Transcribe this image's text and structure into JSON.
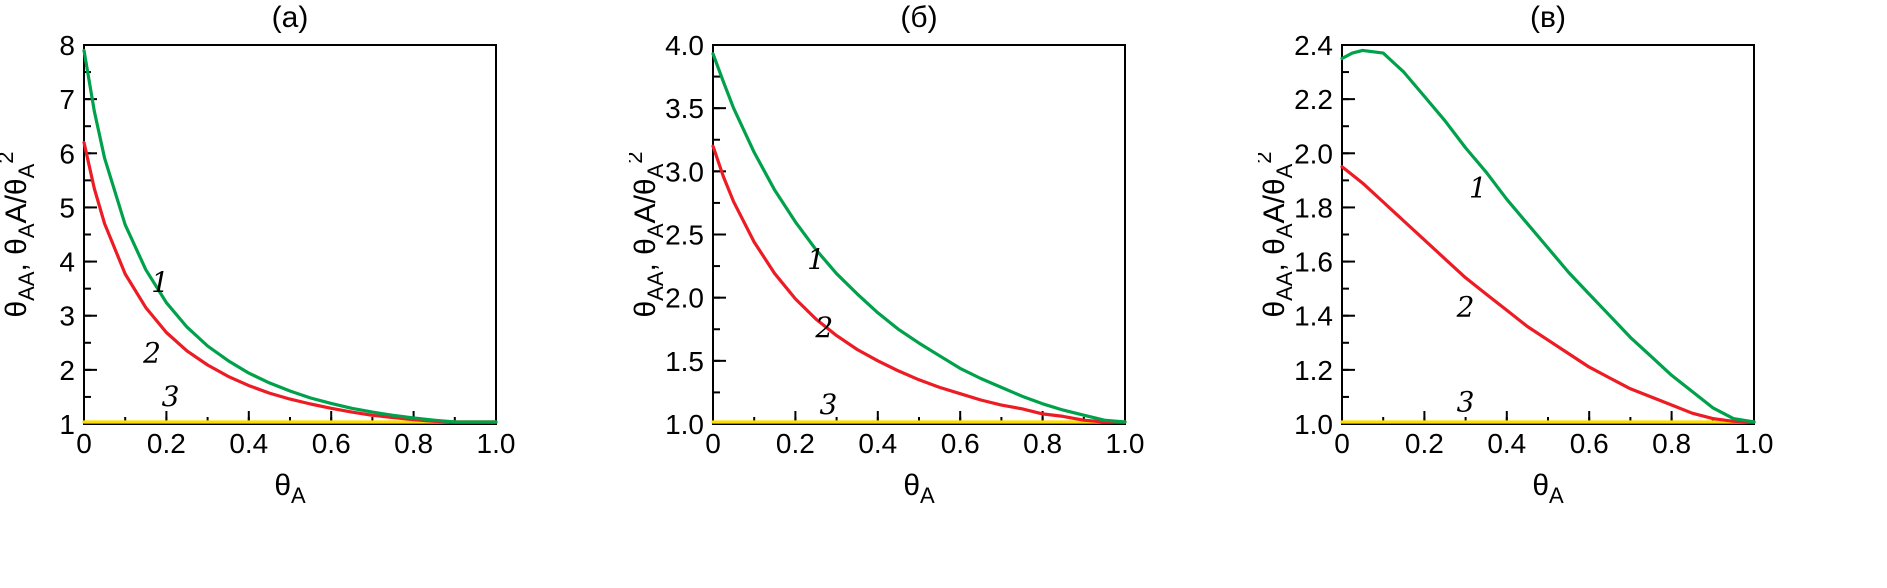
{
  "figure": {
    "background": "#ffffff",
    "frame_color": "#000000"
  },
  "chart_data": [
    {
      "type": "line",
      "title": "(а)",
      "xlabel_parts": [
        {
          "t": "θ"
        },
        {
          "t": "A",
          "style": "sub"
        }
      ],
      "ylabel_parts": [
        {
          "t": "θ"
        },
        {
          "t": "AA",
          "style": "sub"
        },
        {
          "t": ", θ"
        },
        {
          "t": "A",
          "style": "sub"
        },
        {
          "t": "A/θ"
        },
        {
          "t": "A",
          "style": "sub"
        },
        {
          "t": "2",
          "style": "sup"
        }
      ],
      "xlim": [
        0,
        1.0
      ],
      "ylim": [
        1,
        8
      ],
      "xtick_values": [
        0,
        0.2,
        0.4,
        0.6,
        0.8,
        1.0
      ],
      "xtick_labels": [
        "0",
        "0.2",
        "0.4",
        "0.6",
        "0.8",
        "1.0"
      ],
      "ytick_values": [
        1,
        2,
        3,
        4,
        5,
        6,
        7,
        8
      ],
      "ytick_labels": [
        "1",
        "2",
        "3",
        "4",
        "5",
        "6",
        "7",
        "8"
      ],
      "xminor_step": 0.1,
      "yminor_step": 0.5,
      "x": [
        0,
        0.025,
        0.05,
        0.1,
        0.15,
        0.2,
        0.25,
        0.3,
        0.35,
        0.4,
        0.45,
        0.5,
        0.55,
        0.6,
        0.65,
        0.7,
        0.75,
        0.8,
        0.85,
        0.9,
        0.95,
        1.0
      ],
      "series": [
        {
          "name": "1",
          "color": "#00a14b",
          "y": [
            7.9,
            6.78,
            5.91,
            4.68,
            3.85,
            3.24,
            2.79,
            2.44,
            2.17,
            1.94,
            1.76,
            1.61,
            1.48,
            1.38,
            1.29,
            1.22,
            1.16,
            1.11,
            1.07,
            1.03,
            1.01,
            1.0
          ]
        },
        {
          "name": "2",
          "color": "#ed1c24",
          "y": [
            6.2,
            5.35,
            4.7,
            3.77,
            3.15,
            2.69,
            2.35,
            2.09,
            1.88,
            1.71,
            1.57,
            1.46,
            1.37,
            1.29,
            1.22,
            1.16,
            1.12,
            1.08,
            1.05,
            1.03,
            1.01,
            1.0
          ]
        },
        {
          "name": "3",
          "color": "#ffdd00",
          "x": [
            0,
            1.0
          ],
          "y": [
            1.0,
            1.0
          ]
        }
      ],
      "annotations": [
        {
          "text": "1",
          "x": 0.185,
          "y": 3.6
        },
        {
          "text": "2",
          "x": 0.165,
          "y": 2.3
        },
        {
          "text": "3",
          "x": 0.21,
          "y": 1.5
        }
      ]
    },
    {
      "type": "line",
      "title": "(б)",
      "xlabel_parts": [
        {
          "t": "θ"
        },
        {
          "t": "A",
          "style": "sub"
        }
      ],
      "ylabel_parts": [
        {
          "t": "θ"
        },
        {
          "t": "AA",
          "style": "sub"
        },
        {
          "t": ", θ"
        },
        {
          "t": "A",
          "style": "sub"
        },
        {
          "t": "A/θ"
        },
        {
          "t": "A",
          "style": "sub"
        },
        {
          "t": "2",
          "style": "sup"
        }
      ],
      "xlim": [
        0,
        1.0
      ],
      "ylim": [
        1.0,
        4.0
      ],
      "xtick_values": [
        0,
        0.2,
        0.4,
        0.6,
        0.8,
        1.0
      ],
      "xtick_labels": [
        "0",
        "0.2",
        "0.4",
        "0.6",
        "0.8",
        "1.0"
      ],
      "ytick_values": [
        1.0,
        1.5,
        2.0,
        2.5,
        3.0,
        3.5,
        4.0
      ],
      "ytick_labels": [
        "1.0",
        "1.5",
        "2.0",
        "2.5",
        "3.0",
        "3.5",
        "4.0"
      ],
      "xminor_step": 0.1,
      "yminor_step": 0.25,
      "x": [
        0,
        0.025,
        0.05,
        0.1,
        0.15,
        0.2,
        0.25,
        0.3,
        0.35,
        0.4,
        0.45,
        0.5,
        0.55,
        0.6,
        0.65,
        0.7,
        0.75,
        0.8,
        0.85,
        0.9,
        0.95,
        1.0
      ],
      "series": [
        {
          "name": "1",
          "color": "#00a14b",
          "y": [
            3.93,
            3.71,
            3.5,
            3.15,
            2.85,
            2.6,
            2.38,
            2.19,
            2.03,
            1.88,
            1.75,
            1.64,
            1.54,
            1.44,
            1.36,
            1.29,
            1.22,
            1.16,
            1.11,
            1.07,
            1.03,
            1.0
          ]
        },
        {
          "name": "2",
          "color": "#ed1c24",
          "y": [
            3.2,
            2.96,
            2.76,
            2.44,
            2.19,
            1.99,
            1.83,
            1.7,
            1.59,
            1.5,
            1.42,
            1.35,
            1.29,
            1.24,
            1.19,
            1.15,
            1.12,
            1.08,
            1.06,
            1.03,
            1.01,
            1.0
          ]
        },
        {
          "name": "3",
          "color": "#ffdd00",
          "x": [
            0,
            1.0
          ],
          "y": [
            1.0,
            1.0
          ]
        }
      ],
      "annotations": [
        {
          "text": "1",
          "x": 0.25,
          "y": 2.3
        },
        {
          "text": "2",
          "x": 0.27,
          "y": 1.76
        },
        {
          "text": "3",
          "x": 0.28,
          "y": 1.15
        }
      ]
    },
    {
      "type": "line",
      "title": "(в)",
      "xlabel_parts": [
        {
          "t": "θ"
        },
        {
          "t": "A",
          "style": "sub"
        }
      ],
      "ylabel_parts": [
        {
          "t": "θ"
        },
        {
          "t": "AA",
          "style": "sub"
        },
        {
          "t": ", θ"
        },
        {
          "t": "A",
          "style": "sub"
        },
        {
          "t": "A/θ"
        },
        {
          "t": "A",
          "style": "sub"
        },
        {
          "t": "2",
          "style": "sup"
        }
      ],
      "xlim": [
        0,
        1.0
      ],
      "ylim": [
        1.0,
        2.4
      ],
      "xtick_values": [
        0,
        0.2,
        0.4,
        0.6,
        0.8,
        1.0
      ],
      "xtick_labels": [
        "0",
        "0.2",
        "0.4",
        "0.6",
        "0.8",
        "1.0"
      ],
      "ytick_values": [
        1.0,
        1.2,
        1.4,
        1.6,
        1.8,
        2.0,
        2.2,
        2.4
      ],
      "ytick_labels": [
        "1.0",
        "1.2",
        "1.4",
        "1.6",
        "1.8",
        "2.0",
        "2.2",
        "2.4"
      ],
      "xminor_step": 0.1,
      "yminor_step": 0.1,
      "x": [
        0,
        0.025,
        0.05,
        0.1,
        0.15,
        0.2,
        0.25,
        0.3,
        0.35,
        0.4,
        0.45,
        0.5,
        0.55,
        0.6,
        0.65,
        0.7,
        0.75,
        0.8,
        0.85,
        0.9,
        0.95,
        1.0
      ],
      "series": [
        {
          "name": "1",
          "color": "#00a14b",
          "y": [
            2.35,
            2.37,
            2.38,
            2.37,
            2.3,
            2.21,
            2.12,
            2.02,
            1.93,
            1.83,
            1.74,
            1.65,
            1.56,
            1.48,
            1.4,
            1.32,
            1.25,
            1.18,
            1.12,
            1.06,
            1.02,
            1.0
          ]
        },
        {
          "name": "2",
          "color": "#ed1c24",
          "y": [
            1.95,
            1.92,
            1.89,
            1.82,
            1.75,
            1.68,
            1.61,
            1.54,
            1.48,
            1.42,
            1.36,
            1.31,
            1.26,
            1.21,
            1.17,
            1.13,
            1.1,
            1.07,
            1.04,
            1.02,
            1.01,
            1.0
          ]
        },
        {
          "name": "3",
          "color": "#ffdd00",
          "x": [
            0,
            1.0
          ],
          "y": [
            1.0,
            1.0
          ]
        }
      ],
      "annotations": [
        {
          "text": "1",
          "x": 0.33,
          "y": 1.87
        },
        {
          "text": "2",
          "x": 0.3,
          "y": 1.43
        },
        {
          "text": "3",
          "x": 0.3,
          "y": 1.08
        }
      ]
    }
  ]
}
